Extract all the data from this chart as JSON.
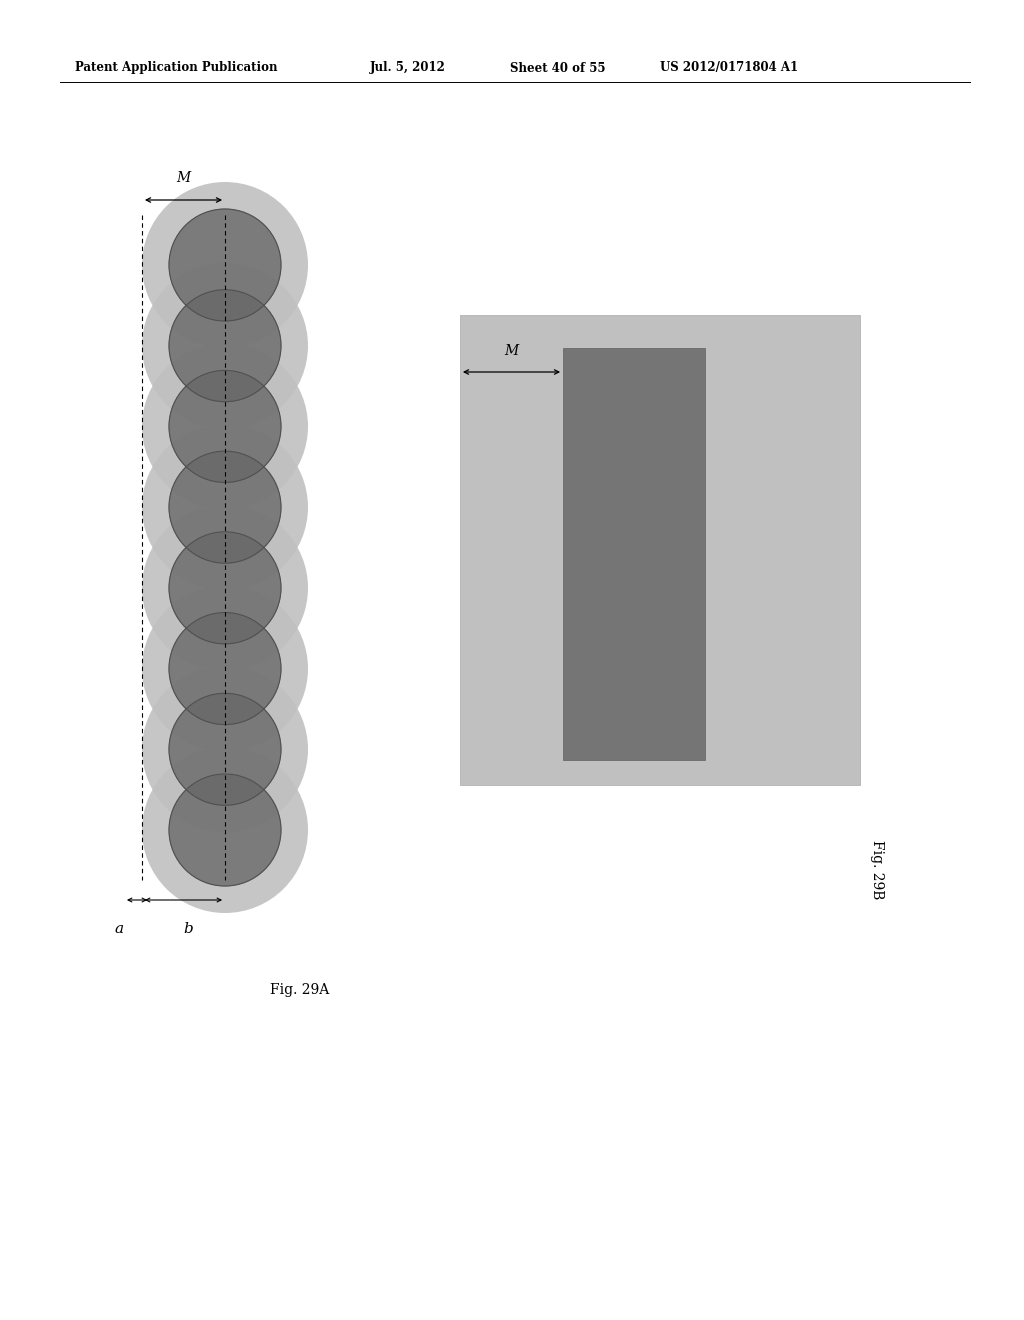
{
  "bg_color": "#ffffff",
  "header_text": "Patent Application Publication",
  "header_date": "Jul. 5, 2012",
  "header_sheet": "Sheet 40 of 55",
  "header_patent": "US 2012/0171804 A1",
  "fig_29A_label": "Fig. 29A",
  "fig_29B_label": "Fig. 29B",
  "label_M": "M",
  "label_a": "a",
  "label_b": "b",
  "light_gray": "#c0c0c0",
  "medium_gray": "#999999",
  "dark_gray": "#686868",
  "circle_outline": "#777777"
}
